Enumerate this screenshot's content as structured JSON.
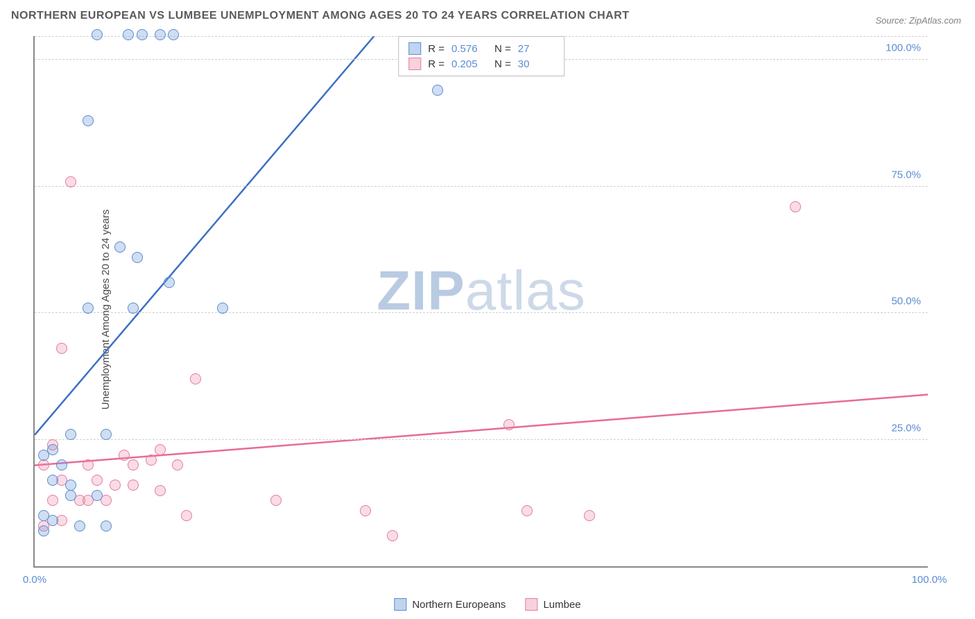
{
  "title": "NORTHERN EUROPEAN VS LUMBEE UNEMPLOYMENT AMONG AGES 20 TO 24 YEARS CORRELATION CHART",
  "source": "Source: ZipAtlas.com",
  "y_axis_label": "Unemployment Among Ages 20 to 24 years",
  "watermark": {
    "left": "ZIP",
    "right": "atlas"
  },
  "chart": {
    "type": "scatter",
    "xlim": [
      0,
      100
    ],
    "ylim": [
      0,
      105
    ],
    "x_ticks": [
      {
        "v": 0,
        "l": "0.0%"
      },
      {
        "v": 100,
        "l": "100.0%"
      }
    ],
    "y_ticks": [
      {
        "v": 25,
        "l": "25.0%"
      },
      {
        "v": 50,
        "l": "50.0%"
      },
      {
        "v": 75,
        "l": "75.0%"
      },
      {
        "v": 100,
        "l": "100.0%"
      }
    ],
    "grid_color": "#d0d0d0",
    "axis_color": "#888888",
    "background_color": "#ffffff",
    "marker_radius": 8,
    "series": [
      {
        "name": "Northern Europeans",
        "color_fill": "rgba(118,160,215,0.35)",
        "color_stroke": "#5b8bd4",
        "r_value": "0.576",
        "n_value": "27",
        "trend": {
          "x1": 0,
          "y1": 26,
          "x2": 38,
          "y2": 105,
          "color": "#3e6fc5",
          "width": 2.5
        },
        "points": [
          {
            "x": 7,
            "y": 105
          },
          {
            "x": 10.5,
            "y": 105
          },
          {
            "x": 12,
            "y": 105
          },
          {
            "x": 14,
            "y": 105
          },
          {
            "x": 15.5,
            "y": 105
          },
          {
            "x": 6,
            "y": 88
          },
          {
            "x": 9.5,
            "y": 63
          },
          {
            "x": 11.5,
            "y": 61
          },
          {
            "x": 15,
            "y": 56
          },
          {
            "x": 6,
            "y": 51
          },
          {
            "x": 11,
            "y": 51
          },
          {
            "x": 21,
            "y": 51
          },
          {
            "x": 45,
            "y": 94
          },
          {
            "x": 4,
            "y": 26
          },
          {
            "x": 8,
            "y": 26
          },
          {
            "x": 1,
            "y": 22
          },
          {
            "x": 2,
            "y": 23
          },
          {
            "x": 3,
            "y": 20
          },
          {
            "x": 2,
            "y": 17
          },
          {
            "x": 4,
            "y": 16
          },
          {
            "x": 4,
            "y": 14
          },
          {
            "x": 1,
            "y": 10
          },
          {
            "x": 2,
            "y": 9
          },
          {
            "x": 7,
            "y": 14
          },
          {
            "x": 1,
            "y": 7
          },
          {
            "x": 5,
            "y": 8
          },
          {
            "x": 8,
            "y": 8
          }
        ]
      },
      {
        "name": "Lumbee",
        "color_fill": "rgba(235,140,170,0.3)",
        "color_stroke": "#e57ba0",
        "r_value": "0.205",
        "n_value": "30",
        "trend": {
          "x1": 0,
          "y1": 20,
          "x2": 100,
          "y2": 34,
          "color": "#e86b95",
          "width": 2.5
        },
        "points": [
          {
            "x": 4,
            "y": 76
          },
          {
            "x": 3,
            "y": 43
          },
          {
            "x": 18,
            "y": 37
          },
          {
            "x": 53,
            "y": 28
          },
          {
            "x": 85,
            "y": 71
          },
          {
            "x": 2,
            "y": 24
          },
          {
            "x": 14,
            "y": 23
          },
          {
            "x": 1,
            "y": 20
          },
          {
            "x": 6,
            "y": 20
          },
          {
            "x": 10,
            "y": 22
          },
          {
            "x": 11,
            "y": 20
          },
          {
            "x": 13,
            "y": 21
          },
          {
            "x": 16,
            "y": 20
          },
          {
            "x": 3,
            "y": 17
          },
          {
            "x": 7,
            "y": 17
          },
          {
            "x": 9,
            "y": 16
          },
          {
            "x": 11,
            "y": 16
          },
          {
            "x": 14,
            "y": 15
          },
          {
            "x": 2,
            "y": 13
          },
          {
            "x": 5,
            "y": 13
          },
          {
            "x": 6,
            "y": 13
          },
          {
            "x": 8,
            "y": 13
          },
          {
            "x": 17,
            "y": 10
          },
          {
            "x": 27,
            "y": 13
          },
          {
            "x": 37,
            "y": 11
          },
          {
            "x": 40,
            "y": 6
          },
          {
            "x": 55,
            "y": 11
          },
          {
            "x": 62,
            "y": 10
          },
          {
            "x": 1,
            "y": 8
          },
          {
            "x": 3,
            "y": 9
          }
        ]
      }
    ],
    "legend_top_labels": {
      "R": "R  =",
      "N": "N  ="
    },
    "legend_bottom": [
      "Northern Europeans",
      "Lumbee"
    ]
  }
}
